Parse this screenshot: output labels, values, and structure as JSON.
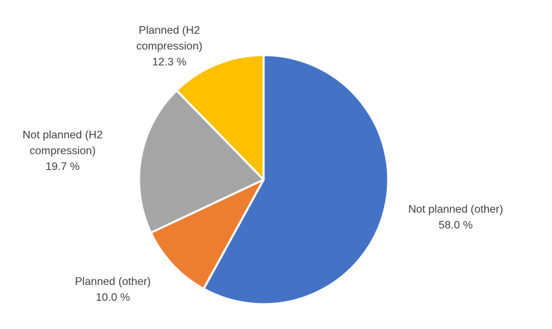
{
  "chart_data": {
    "type": "pie",
    "slices": [
      {
        "label_lines": [
          "Not planned (other)"
        ],
        "value_text": "58.0 %",
        "value": 58.0,
        "color": "#4472C4"
      },
      {
        "label_lines": [
          "Planned (other)"
        ],
        "value_text": "10.0 %",
        "value": 10.0,
        "color": "#ED7D31"
      },
      {
        "label_lines": [
          "Not planned (H2",
          "compression)"
        ],
        "value_text": "19.7 %",
        "value": 19.7,
        "color": "#A5A5A5"
      },
      {
        "label_lines": [
          "Planned (H2",
          "compression)"
        ],
        "value_text": "12.3 %",
        "value": 12.3,
        "color": "#FFC000"
      }
    ],
    "start_angle_deg": 0,
    "direction": "clockwise"
  }
}
